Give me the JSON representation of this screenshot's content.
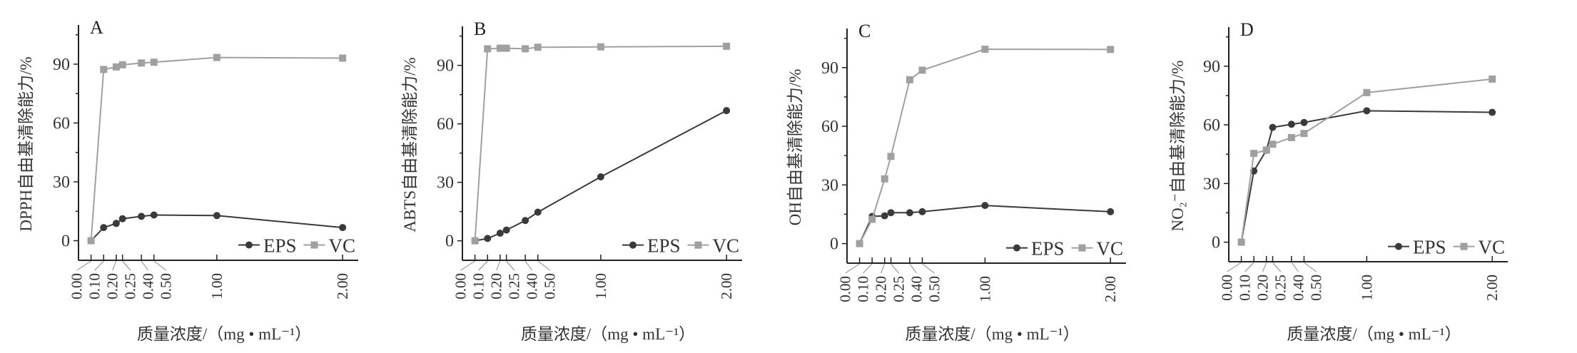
{
  "colors": {
    "EPS": "#3a3a3a",
    "VC": "#a0a0a0",
    "axis": "#222222"
  },
  "chart_data": [
    {
      "type": "line",
      "panel": "A",
      "ylabel": "DPPH自由基清除能力/%",
      "xlabel": "质量浓度/（mg • mL⁻¹）",
      "x": [
        0.0,
        0.1,
        0.2,
        0.25,
        0.4,
        0.5,
        1.0,
        2.0
      ],
      "x_tick_labels": [
        "0.00",
        "0.10",
        "0.20",
        "0.25",
        "0.40",
        "0.50",
        "1.00",
        "2.00"
      ],
      "y_ticks": [
        0,
        30,
        60,
        90
      ],
      "y_tick_labels": [
        "0",
        "30",
        "60",
        "90"
      ],
      "ylim": [
        -10,
        110
      ],
      "xlim": [
        -0.1,
        2.09
      ],
      "legend": "bottom-right",
      "series": [
        {
          "name": "EPS",
          "marker": "circle",
          "values": [
            0,
            6.7,
            8.8,
            11.2,
            12.4,
            13.1,
            12.8,
            6.7
          ]
        },
        {
          "name": "VC",
          "marker": "square",
          "values": [
            0,
            87.3,
            88.6,
            89.7,
            90.6,
            91.0,
            93.4,
            93.1
          ]
        }
      ]
    },
    {
      "type": "line",
      "panel": "B",
      "ylabel": "ABTS自由基清除能力/%",
      "xlabel": "质量浓度/（mg • mL⁻¹）",
      "x": [
        0.0,
        0.1,
        0.2,
        0.25,
        0.4,
        0.5,
        1.0,
        2.0
      ],
      "x_tick_labels": [
        "0.00",
        "0.10",
        "0.20",
        "0.25",
        "0.40",
        "0.50",
        "1.00",
        "2.00"
      ],
      "y_ticks": [
        0,
        30,
        60,
        90
      ],
      "y_tick_labels": [
        "0",
        "30",
        "60",
        "90"
      ],
      "ylim": [
        -10,
        110
      ],
      "xlim": [
        -0.1,
        2.09
      ],
      "legend": "bottom-right",
      "series": [
        {
          "name": "EPS",
          "marker": "circle",
          "values": [
            0,
            1.2,
            3.9,
            5.5,
            10.4,
            14.7,
            32.8,
            66.8
          ]
        },
        {
          "name": "VC",
          "marker": "square",
          "values": [
            0,
            98.5,
            98.8,
            98.8,
            98.5,
            99.3,
            99.5,
            99.8
          ]
        }
      ]
    },
    {
      "type": "line",
      "panel": "C",
      "ylabel": "OH自由基清除能力/%",
      "xlabel": "质量浓度/（mg • mL⁻¹）",
      "x": [
        0.0,
        0.1,
        0.2,
        0.25,
        0.4,
        0.5,
        1.0,
        2.0
      ],
      "x_tick_labels": [
        "0.00",
        "0.10",
        "0.20",
        "0.25",
        "0.40",
        "0.50",
        "1.00",
        "2.00"
      ],
      "y_ticks": [
        0,
        30,
        60,
        90
      ],
      "y_tick_labels": [
        "0",
        "30",
        "60",
        "90"
      ],
      "ylim": [
        -10,
        110
      ],
      "xlim": [
        -0.1,
        2.09
      ],
      "legend": "bottom-right",
      "series": [
        {
          "name": "EPS",
          "marker": "circle",
          "values": [
            0,
            13.9,
            14.2,
            15.8,
            15.8,
            16.3,
            19.5,
            16.3
          ]
        },
        {
          "name": "VC",
          "marker": "square",
          "values": [
            0,
            12.4,
            33.1,
            44.6,
            83.8,
            88.7,
            99.4,
            99.3
          ]
        }
      ]
    },
    {
      "type": "line",
      "panel": "D",
      "ylabel": "NO₂⁻自由基清除能力/%",
      "xlabel": "质量浓度/（mg • mL⁻¹）",
      "x": [
        0.0,
        0.1,
        0.2,
        0.25,
        0.4,
        0.5,
        1.0,
        2.0
      ],
      "x_tick_labels": [
        "0.00",
        "0.10",
        "0.20",
        "0.25",
        "0.40",
        "0.50",
        "1.00",
        "2.00"
      ],
      "y_ticks": [
        0,
        30,
        60,
        90
      ],
      "y_tick_labels": [
        "0",
        "30",
        "60",
        "90"
      ],
      "ylim": [
        -10,
        110
      ],
      "xlim": [
        -0.1,
        2.09
      ],
      "legend": "bottom-right",
      "series": [
        {
          "name": "EPS",
          "marker": "circle",
          "values": [
            0,
            36.4,
            47.0,
            58.7,
            60.3,
            61.2,
            67.2,
            66.4
          ]
        },
        {
          "name": "VC",
          "marker": "square",
          "values": [
            0,
            45.4,
            47.1,
            50.1,
            53.5,
            55.6,
            76.5,
            83.4
          ]
        }
      ]
    }
  ]
}
